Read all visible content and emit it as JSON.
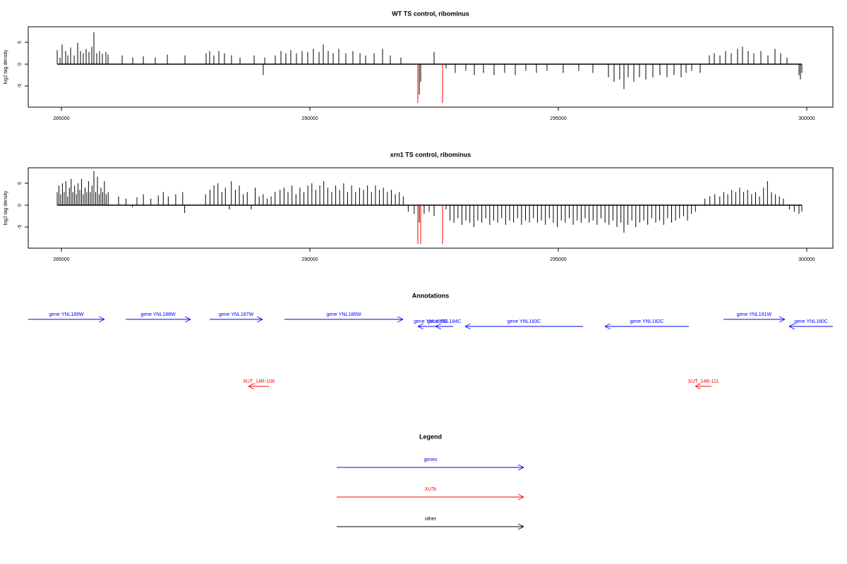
{
  "chart_data": [
    {
      "type": "bar",
      "title": "WT TS control, ribominus",
      "y_label": "log2 tag density",
      "xlim": [
        284332,
        300526
      ],
      "ylim": [
        -9.84,
        8.55
      ],
      "xticks": [
        285000,
        290000,
        295000,
        300000
      ],
      "yticks": [
        -5,
        0,
        5
      ],
      "series": [
        {
          "color": "#000000",
          "x": [
            284915,
            284972,
            285014,
            285085,
            285128,
            285185,
            285256,
            285327,
            285384,
            285440,
            285497,
            285554,
            285611,
            285653,
            285710,
            285767,
            285824,
            285895,
            285938,
            286222,
            286435,
            286648,
            286889,
            287131,
            287486,
            287912,
            287983,
            288068,
            288168,
            288281,
            288423,
            288594,
            288878,
            289062,
            289091,
            289304,
            289418,
            289517,
            289616,
            289730,
            289844,
            289957,
            290071,
            290185,
            290270,
            290369,
            290469,
            290582,
            290724,
            290866,
            291009,
            291122,
            291293,
            291463,
            291619,
            291832,
            292202,
            292230,
            292500,
            292741,
            292926,
            293139,
            293310,
            293494,
            293707,
            293920,
            294134,
            294347,
            294560,
            294773,
            295099,
            295412,
            295696,
            296009,
            296122,
            296236,
            296321,
            296406,
            296520,
            296634,
            296761,
            296903,
            297045,
            297187,
            297330,
            297472,
            297571,
            297685,
            297855,
            298040,
            298139,
            298253,
            298366,
            298480,
            298608,
            298707,
            298821,
            298935,
            299077,
            299219,
            299361,
            299474,
            299602,
            299844,
            299872,
            299901
          ],
          "values": [
            3.2,
            1.5,
            4.5,
            3,
            2,
            3.8,
            2,
            4.9,
            3,
            2.5,
            3.5,
            2.8,
            4,
            7.3,
            2.5,
            3,
            2.4,
            2.8,
            2.2,
            2,
            1.5,
            1.8,
            1.5,
            2.2,
            2,
            2.5,
            3,
            2,
            3,
            2.5,
            2,
            1.5,
            2,
            -2.5,
            1.5,
            2,
            3,
            2.5,
            3.2,
            2.5,
            3,
            2.8,
            3.5,
            2.8,
            4.5,
            3,
            2.5,
            3.5,
            2.5,
            3,
            2.5,
            2,
            2.5,
            3.5,
            2,
            1.5,
            -7,
            -4,
            2.8,
            -1,
            -2,
            -1.5,
            -2.5,
            -2,
            -2.5,
            -2,
            -2.5,
            -1.5,
            -2,
            -1.5,
            -2,
            -1.5,
            -2,
            -3,
            -4,
            -3.5,
            -5.7,
            -3,
            -4,
            -3,
            -3.5,
            -3,
            -2.5,
            -3,
            -2.5,
            -3,
            -2,
            -1.5,
            -2,
            2,
            2.5,
            2,
            3,
            2.5,
            3.5,
            4,
            3,
            2.5,
            3,
            2,
            3.5,
            2.5,
            1.5,
            -2.5,
            -3.5,
            -2
          ]
        },
        {
          "color": "#ff0000",
          "x": [
            292173,
            292670
          ],
          "values": [
            -8.9,
            -8.9
          ]
        }
      ]
    },
    {
      "type": "bar",
      "title": "xrn1 TS control, ribominus",
      "y_label": "log2 tag density",
      "xlim": [
        284332,
        300526
      ],
      "ylim": [
        -9.84,
        8.55
      ],
      "xticks": [
        285000,
        290000,
        295000,
        300000
      ],
      "yticks": [
        -5,
        0,
        5
      ],
      "series": [
        {
          "color": "#000000",
          "x": [
            284915,
            284950,
            284985,
            285020,
            285055,
            285090,
            285125,
            285160,
            285195,
            285230,
            285265,
            285300,
            285335,
            285370,
            285405,
            285440,
            285475,
            285510,
            285545,
            285580,
            285615,
            285653,
            285690,
            285725,
            285760,
            285795,
            285830,
            285865,
            285900,
            285940,
            286150,
            286300,
            286430,
            286520,
            286650,
            286800,
            286950,
            287050,
            287150,
            287300,
            287440,
            287480,
            287900,
            287990,
            288070,
            288150,
            288230,
            288300,
            288380,
            288420,
            288500,
            288580,
            288660,
            288740,
            288820,
            288900,
            288980,
            289060,
            289140,
            289220,
            289300,
            289400,
            289480,
            289560,
            289640,
            289720,
            289800,
            289880,
            289960,
            290040,
            290120,
            290200,
            290280,
            290360,
            290440,
            290520,
            290600,
            290680,
            290760,
            290840,
            290920,
            291000,
            291080,
            291160,
            291240,
            291320,
            291400,
            291480,
            291560,
            291640,
            291720,
            291800,
            291880,
            291980,
            292100,
            292202,
            292300,
            292400,
            292500,
            292741,
            292820,
            292900,
            292980,
            293060,
            293140,
            293220,
            293300,
            293380,
            293460,
            293540,
            293620,
            293700,
            293780,
            293860,
            293940,
            294020,
            294100,
            294180,
            294260,
            294340,
            294420,
            294500,
            294580,
            294660,
            294740,
            294820,
            294900,
            294980,
            295060,
            295140,
            295220,
            295300,
            295380,
            295460,
            295540,
            295620,
            295700,
            295780,
            295860,
            295940,
            296020,
            296100,
            296180,
            296260,
            296321,
            296400,
            296480,
            296560,
            296640,
            296720,
            296800,
            296880,
            296960,
            297040,
            297120,
            297200,
            297280,
            297360,
            297440,
            297520,
            297600,
            297680,
            297760,
            297950,
            298050,
            298150,
            298250,
            298330,
            298410,
            298490,
            298570,
            298650,
            298730,
            298810,
            298890,
            298970,
            299050,
            299130,
            299210,
            299290,
            299370,
            299450,
            299530,
            299650,
            299750,
            299844,
            299901
          ],
          "values": [
            3,
            4.5,
            2.5,
            5,
            3,
            5.5,
            2,
            4,
            6,
            3,
            4.5,
            2.5,
            5,
            3.5,
            6,
            2.5,
            4,
            3,
            5.5,
            3,
            4.5,
            7.8,
            3,
            6.5,
            2.5,
            4,
            3,
            5.5,
            2.5,
            3,
            2,
            1.5,
            -0.5,
            1.8,
            2.5,
            1.5,
            2.2,
            3,
            2,
            2.5,
            3,
            -1.8,
            2.5,
            3.5,
            4.5,
            5,
            3,
            4,
            -1,
            5.5,
            3.5,
            4.5,
            2.5,
            3,
            -1,
            4,
            2,
            2.5,
            1.5,
            2,
            3,
            3.5,
            4,
            3,
            4.5,
            2.5,
            4,
            3,
            4.5,
            5,
            3.5,
            4.5,
            5.5,
            4,
            3,
            4.5,
            3.5,
            5,
            3,
            4.5,
            3,
            4,
            3.5,
            4.5,
            3,
            4.5,
            3.5,
            4,
            3,
            3.5,
            2.5,
            3,
            2,
            -1.5,
            -2,
            -4,
            -2,
            -1.5,
            -2.5,
            -1,
            -3.5,
            -4,
            -3,
            -4.5,
            -3.5,
            -4,
            -5,
            -3.5,
            -4,
            -3,
            -4.5,
            -3.5,
            -4,
            -3,
            -4.5,
            -3.5,
            -4,
            -3,
            -4.5,
            -3.5,
            -4,
            -3,
            -4,
            -3.5,
            -4.5,
            -3,
            -4,
            -5,
            -3.5,
            -4,
            -3,
            -4.5,
            -3.5,
            -4,
            -3,
            -4,
            -3.5,
            -4.5,
            -3,
            -4,
            -4.5,
            -3.5,
            -5,
            -4,
            -6.3,
            -4.5,
            -3.5,
            -5,
            -4,
            -3.5,
            -4.5,
            -3,
            -4,
            -3.5,
            -4.5,
            -3,
            -4,
            -3.5,
            -3,
            -2.5,
            -3.5,
            -2,
            -1.5,
            1.5,
            2,
            2.5,
            2,
            3,
            2.5,
            3.5,
            3,
            4,
            3,
            3.5,
            2.5,
            3,
            2,
            4,
            5.5,
            3,
            2.5,
            2,
            1.5,
            -1,
            -1.5,
            -2,
            -1.5
          ]
        },
        {
          "color": "#ff0000",
          "x": [
            292173,
            292230,
            292670
          ],
          "values": [
            -8.9,
            -8.9,
            -8.9
          ]
        }
      ]
    },
    {
      "type": "annotation",
      "title": "Annotations",
      "xlim": [
        284332,
        300526
      ],
      "features": [
        {
          "label": "gene YNL189W",
          "from": 284332,
          "to": 285866,
          "color": "#0000ff"
        },
        {
          "label": "gene YNL188W",
          "from": 286292,
          "to": 287599,
          "color": "#0000ff"
        },
        {
          "label": "gene YNL187W",
          "from": 287982,
          "to": 289048,
          "color": "#0000ff"
        },
        {
          "label": "gene YNL186W",
          "from": 289488,
          "to": 291875,
          "color": "#0000ff"
        },
        {
          "label": "gene YNL185C",
          "from": 292685,
          "to": 292173,
          "color": "#0000ff"
        },
        {
          "label": "gene YNL184C",
          "from": 292883,
          "to": 292528,
          "color": "#0000ff"
        },
        {
          "label": "gene YNL183C",
          "from": 295497,
          "to": 293124,
          "color": "#0000ff"
        },
        {
          "label": "gene YNL182C",
          "from": 297628,
          "to": 295937,
          "color": "#0000ff"
        },
        {
          "label": "gene YNL181W",
          "from": 298324,
          "to": 299559,
          "color": "#0000ff"
        },
        {
          "label": "gene YNL180C",
          "from": 300526,
          "to": 299645,
          "color": "#0000ff"
        },
        {
          "label": "XUT_14R-108",
          "from": 289176,
          "to": 288764,
          "color": "#ff0000"
        },
        {
          "label": "XUT_14R-111",
          "from": 298082,
          "to": 297755,
          "color": "#ff0000"
        }
      ],
      "legend": {
        "title": "Legend",
        "entries": [
          {
            "name": "genes",
            "color": "#0000ff"
          },
          {
            "name": "XUTs",
            "color": "#ff0000"
          },
          {
            "name": "other",
            "color": "#000000"
          }
        ]
      }
    }
  ]
}
